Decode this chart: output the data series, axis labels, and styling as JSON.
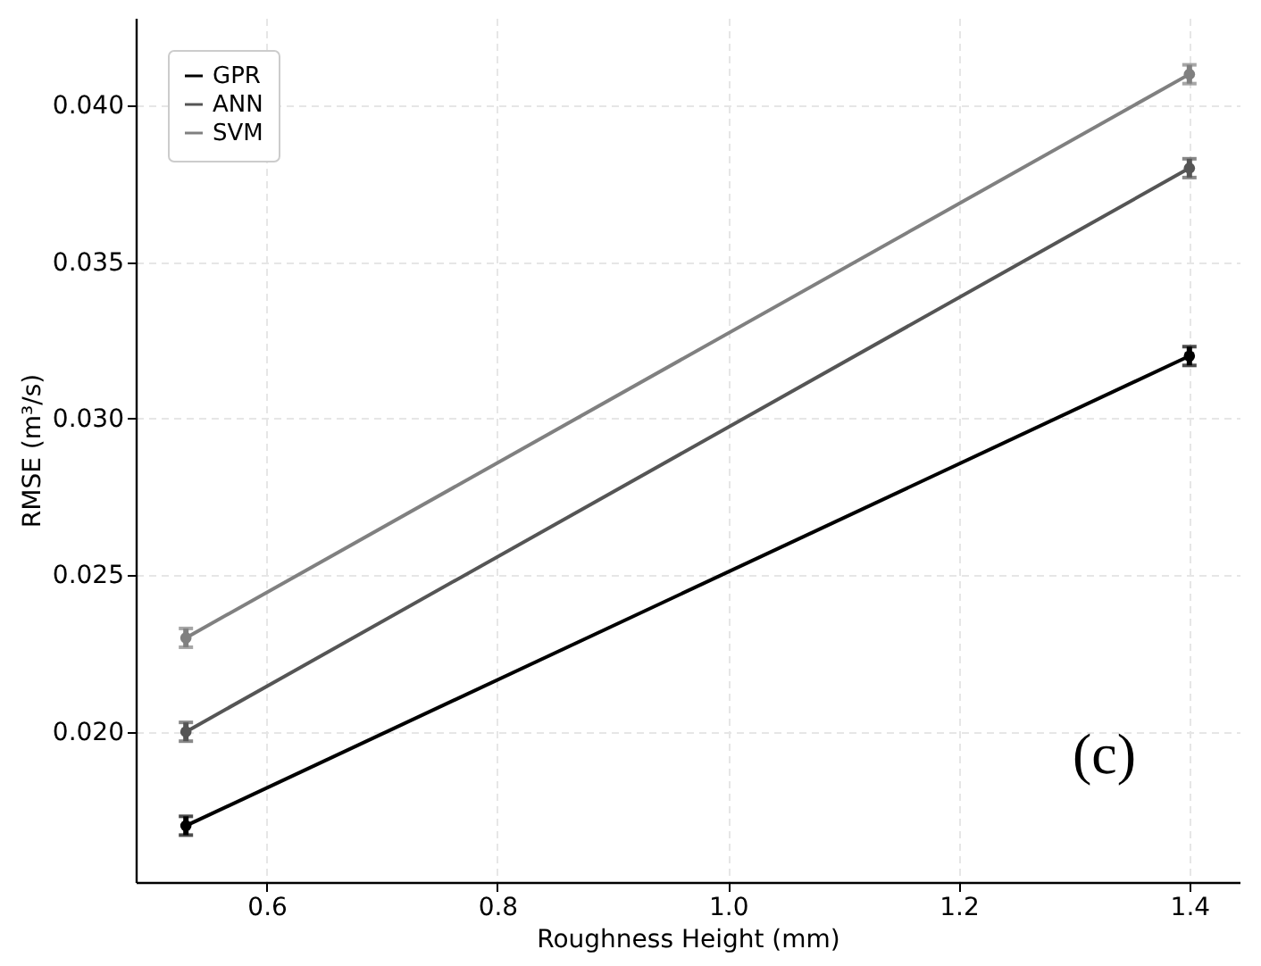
{
  "chart_data": {
    "type": "line",
    "xlabel": "Roughness Height (mm)",
    "ylabel": "RMSE (m³/s)",
    "x": [
      0.53,
      1.4
    ],
    "series": [
      {
        "name": "GPR",
        "color": "#000000",
        "values": [
          0.017,
          0.032
        ],
        "errors": [
          0.0003,
          0.0003
        ]
      },
      {
        "name": "ANN",
        "color": "#555555",
        "values": [
          0.02,
          0.038
        ],
        "errors": [
          0.0003,
          0.0003
        ]
      },
      {
        "name": "SVM",
        "color": "#808080",
        "values": [
          0.023,
          0.041
        ],
        "errors": [
          0.0003,
          0.0003
        ]
      }
    ],
    "xlim": [
      0.4865,
      1.4435
    ],
    "ylim": [
      0.0152,
      0.0428
    ],
    "xticks": [
      {
        "value": 0.6,
        "label": "0.6"
      },
      {
        "value": 0.8,
        "label": "0.8"
      },
      {
        "value": 1.0,
        "label": "1.0"
      },
      {
        "value": 1.2,
        "label": "1.2"
      },
      {
        "value": 1.4,
        "label": "1.4"
      }
    ],
    "yticks": [
      {
        "value": 0.02,
        "label": "0.020"
      },
      {
        "value": 0.025,
        "label": "0.025"
      },
      {
        "value": 0.03,
        "label": "0.030"
      },
      {
        "value": 0.035,
        "label": "0.035"
      },
      {
        "value": 0.04,
        "label": "0.040"
      }
    ],
    "grid": true,
    "legend": "top left",
    "marker": "circle",
    "line_style": "solid",
    "annotations": [
      "(c)"
    ]
  }
}
